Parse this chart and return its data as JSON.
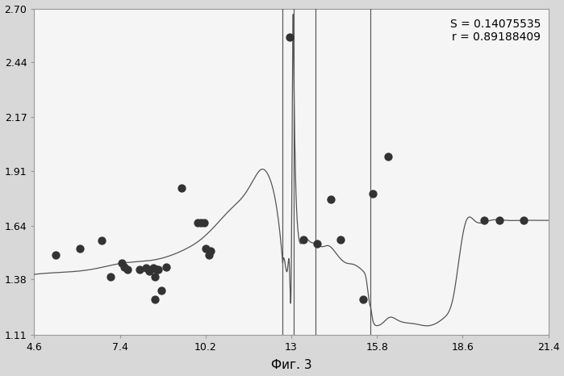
{
  "title": "Фиг. 3",
  "annotation": "S = 0.14075535\nr = 0.89188409",
  "xlim": [
    4.6,
    21.4
  ],
  "ylim": [
    1.11,
    2.7
  ],
  "xticks": [
    4.6,
    7.4,
    10.2,
    13.0,
    15.8,
    18.6,
    21.4
  ],
  "yticks": [
    1.11,
    1.38,
    1.64,
    1.91,
    2.17,
    2.44,
    2.7
  ],
  "scatter_x": [
    5.3,
    6.1,
    6.8,
    7.1,
    7.45,
    7.55,
    7.65,
    8.05,
    8.25,
    8.35,
    8.5,
    8.55,
    8.6,
    8.65,
    8.75,
    8.55,
    8.9,
    9.4,
    9.95,
    10.05,
    10.15,
    10.2,
    10.3,
    10.35,
    12.95,
    13.4,
    13.85,
    14.3,
    14.6,
    15.35,
    15.65,
    16.15,
    19.3,
    19.8,
    20.6
  ],
  "scatter_y": [
    1.5,
    1.53,
    1.57,
    1.395,
    1.46,
    1.44,
    1.43,
    1.43,
    1.435,
    1.42,
    1.435,
    1.395,
    1.43,
    1.43,
    1.325,
    1.285,
    1.44,
    1.825,
    1.655,
    1.655,
    1.655,
    1.53,
    1.5,
    1.52,
    2.56,
    1.575,
    1.555,
    1.77,
    1.575,
    1.285,
    1.8,
    1.98,
    1.668,
    1.668,
    1.668
  ],
  "vlines_x": [
    12.72,
    13.07,
    13.8,
    15.58
  ],
  "background_color": "#d8d8d8",
  "plot_bg_color": "#f5f5f5",
  "line_color": "#555555",
  "scatter_color": "#333333",
  "annotation_fontsize": 10,
  "label_fontsize": 11,
  "curve_segments": {
    "seg1_x": [
      4.6,
      5.5,
      6.5,
      7.5,
      8.5,
      9.5,
      10.0,
      10.5,
      11.0,
      11.5,
      11.8,
      12.0,
      12.3,
      12.55,
      12.72
    ],
    "seg1_y": [
      1.405,
      1.415,
      1.43,
      1.46,
      1.475,
      1.525,
      1.57,
      1.64,
      1.72,
      1.8,
      1.875,
      1.915,
      1.87,
      1.7,
      1.46
    ],
    "seg2_x": [
      12.72,
      12.82,
      12.88,
      12.94,
      13.0,
      13.03,
      13.07
    ],
    "seg2_y": [
      1.46,
      1.435,
      1.435,
      1.435,
      1.44,
      2.2,
      2.56
    ],
    "seg3_x": [
      13.07,
      13.12,
      13.2,
      13.4,
      13.6,
      13.8,
      14.0,
      14.2,
      14.5,
      14.8,
      15.0,
      15.2,
      15.35,
      15.45,
      15.52,
      15.58
    ],
    "seg3_y": [
      2.56,
      2.0,
      1.65,
      1.575,
      1.565,
      1.555,
      1.54,
      1.545,
      1.5,
      1.46,
      1.455,
      1.44,
      1.42,
      1.38,
      1.3,
      1.25
    ],
    "seg4_x": [
      15.58,
      15.62,
      15.65,
      15.7,
      15.8,
      16.0,
      16.2,
      16.5,
      17.0,
      17.5,
      18.0,
      18.3,
      18.55,
      18.7,
      19.0,
      19.5,
      20.0,
      20.5,
      21.0,
      21.4
    ],
    "seg4_y": [
      1.25,
      1.22,
      1.19,
      1.165,
      1.155,
      1.17,
      1.195,
      1.18,
      1.165,
      1.155,
      1.195,
      1.3,
      1.55,
      1.66,
      1.665,
      1.668,
      1.668,
      1.668,
      1.668,
      1.668
    ]
  }
}
